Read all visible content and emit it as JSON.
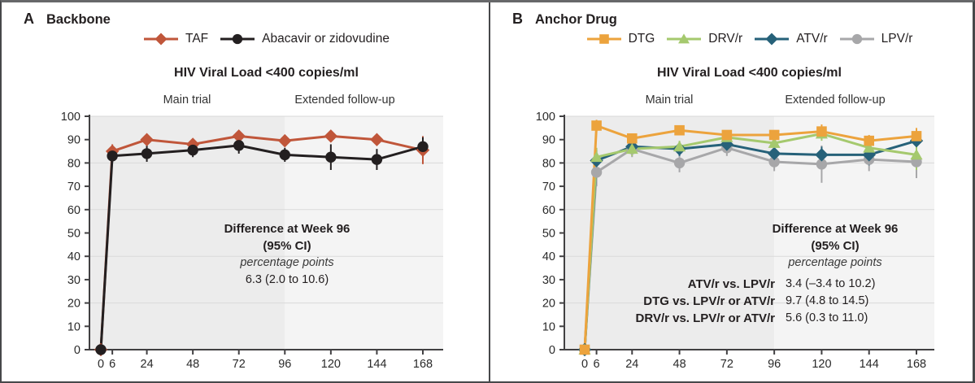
{
  "panels": [
    {
      "label": "A",
      "heading": "Backbone"
    },
    {
      "label": "B",
      "heading": "Anchor Drug"
    }
  ],
  "chart_data": [
    {
      "type": "line",
      "panel": "A",
      "title": "HIV Viral Load <400 copies/ml",
      "xlabel": "",
      "ylabel": "",
      "xlim": [
        0,
        168
      ],
      "ylim": [
        0,
        100
      ],
      "ytick_step": 10,
      "grid_values": [
        20,
        40,
        60,
        80,
        100
      ],
      "x_weeks": [
        0,
        6,
        24,
        48,
        72,
        96,
        120,
        144,
        168
      ],
      "regions": [
        {
          "label": "Main trial",
          "from": 0,
          "to": 96
        },
        {
          "label": "Extended follow-up",
          "from": 96,
          "to": 168
        }
      ],
      "series": [
        {
          "name": "TAF",
          "marker": "diamond",
          "color": "#c0563a",
          "z": 0,
          "values": [
            0,
            85,
            90,
            88,
            91.5,
            89.5,
            91.5,
            90,
            85.5
          ],
          "err": [
            0,
            3,
            1.5,
            1.5,
            1.5,
            2,
            1.5,
            2.5,
            6
          ]
        },
        {
          "name": "Abacavir or zidovudine",
          "marker": "circle",
          "color": "#231f20",
          "z": 1,
          "values": [
            0,
            83,
            84,
            85.5,
            87.5,
            83.5,
            82.5,
            81.5,
            87
          ],
          "err": [
            0,
            3,
            3.5,
            3,
            3.5,
            3,
            5.5,
            4.5,
            4
          ]
        }
      ],
      "annotation": {
        "title": "Difference at Week 96",
        "subtitle": "(95% CI)",
        "unit": "percentage points",
        "rows": [
          {
            "label": "",
            "value": "6.3 (2.0 to 10.6)"
          }
        ]
      }
    },
    {
      "type": "line",
      "panel": "B",
      "title": "HIV Viral Load <400 copies/ml",
      "xlabel": "",
      "ylabel": "",
      "xlim": [
        0,
        168
      ],
      "ylim": [
        0,
        100
      ],
      "ytick_step": 10,
      "grid_values": [
        20,
        40,
        60,
        80,
        100
      ],
      "x_weeks": [
        0,
        6,
        24,
        48,
        72,
        96,
        120,
        144,
        168
      ],
      "regions": [
        {
          "label": "Main trial",
          "from": 0,
          "to": 96
        },
        {
          "label": "Extended follow-up",
          "from": 96,
          "to": 168
        }
      ],
      "series": [
        {
          "name": "DTG",
          "marker": "square",
          "color": "#eca33d",
          "z": 3,
          "values": [
            0,
            96,
            90.5,
            94,
            92,
            92,
            93.5,
            89.5,
            91.5
          ],
          "err": [
            0,
            2.5,
            2,
            2,
            2,
            2,
            3,
            2.5,
            3.5
          ]
        },
        {
          "name": "DRV/r",
          "marker": "triangle",
          "color": "#a5c96e",
          "z": 2,
          "values": [
            0,
            82.5,
            86,
            87,
            91,
            88.5,
            92.5,
            86.5,
            83.5
          ],
          "err": [
            0,
            4,
            3,
            2.5,
            2.5,
            3,
            3,
            3.5,
            6.5
          ]
        },
        {
          "name": "ATV/r",
          "marker": "diamond",
          "color": "#266179",
          "z": 1,
          "values": [
            0,
            81,
            87,
            86,
            88,
            84,
            83.5,
            83.5,
            89.5
          ],
          "err": [
            0,
            4.5,
            3,
            3,
            3,
            3.5,
            3.5,
            4.5,
            4
          ]
        },
        {
          "name": "LPV/r",
          "marker": "circle",
          "color": "#a7a7a9",
          "z": 0,
          "values": [
            0,
            76,
            86,
            80,
            86.5,
            80.5,
            79.5,
            81.5,
            80.5
          ],
          "err": [
            0,
            6,
            3.5,
            4,
            3.5,
            4,
            8,
            5,
            7
          ]
        }
      ],
      "annotation": {
        "title": "Difference at Week 96",
        "subtitle": "(95% CI)",
        "unit": "percentage points",
        "rows": [
          {
            "label": "ATV/r vs. LPV/r",
            "value": "3.4 (–3.4 to 10.2)"
          },
          {
            "label": "DTG vs. LPV/r or ATV/r",
            "value": "9.7 (4.8 to 14.5)"
          },
          {
            "label": "DRV/r vs. LPV/r or ATV/r",
            "value": "5.6 (0.3 to 11.0)"
          }
        ]
      }
    }
  ]
}
